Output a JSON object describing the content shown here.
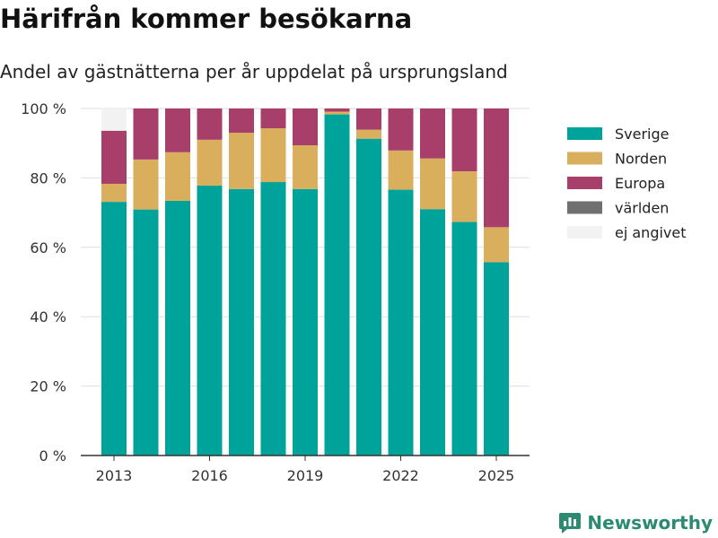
{
  "title": "Härifrån kommer besökarna",
  "subtitle": "Andel av gästnätterna per år uppdelat på ursprungsland",
  "brand": "Newsworthy",
  "chart_data": {
    "type": "bar",
    "stacked": true,
    "categories": [
      2013,
      2014,
      2015,
      2016,
      2017,
      2018,
      2019,
      2020,
      2021,
      2022,
      2023,
      2024,
      2025
    ],
    "x_tick_labels": [
      "2013",
      "2016",
      "2019",
      "2022",
      "2025"
    ],
    "y_tick_labels": [
      "0 %",
      "20 %",
      "40 %",
      "60 %",
      "80 %",
      "100 %"
    ],
    "ylim": [
      0,
      100
    ],
    "grid": true,
    "legend_position": "right",
    "series": [
      {
        "name": "Sverige",
        "color": "#00a39a",
        "values": [
          73.1,
          70.9,
          73.4,
          77.8,
          76.8,
          78.8,
          76.8,
          98.3,
          91.3,
          76.6,
          71.0,
          67.3,
          55.7
        ]
      },
      {
        "name": "Norden",
        "color": "#d9ae5c",
        "values": [
          5.2,
          14.4,
          14.0,
          13.2,
          16.2,
          15.5,
          12.6,
          0.8,
          2.6,
          11.3,
          14.6,
          14.6,
          10.1
        ]
      },
      {
        "name": "Europa",
        "color": "#a83e6a",
        "values": [
          15.3,
          14.7,
          12.6,
          9.0,
          7.0,
          5.7,
          10.6,
          0.9,
          6.1,
          12.1,
          14.4,
          18.1,
          34.2
        ]
      },
      {
        "name": "världen",
        "color": "#707070",
        "values": [
          0,
          0,
          0,
          0,
          0,
          0,
          0,
          0,
          0,
          0,
          0,
          0,
          0
        ]
      },
      {
        "name": "ej angivet",
        "color": "#f2f2f2",
        "values": [
          6.4,
          0,
          0,
          0,
          0,
          0,
          0,
          0,
          0,
          0,
          0,
          0,
          0
        ]
      }
    ]
  }
}
